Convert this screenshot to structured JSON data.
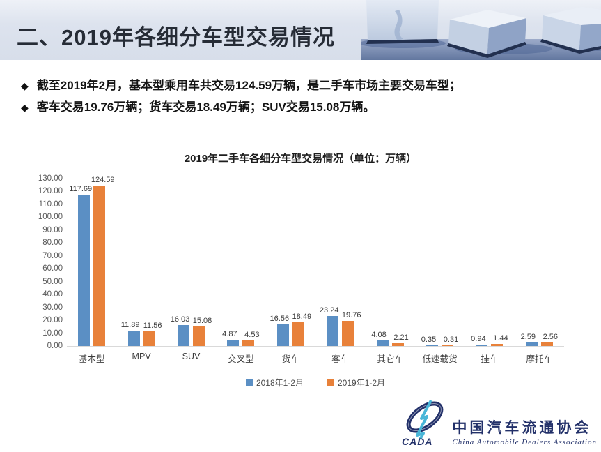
{
  "header": {
    "title": "二、2019年各细分车型交易情况"
  },
  "bullet_marker": "◆",
  "bullets": [
    "截至2019年2月，基本型乘用车共交易124.59万辆，是二手车市场主要交易车型；",
    "客车交易19.76万辆；货车交易18.49万辆；SUV交易15.08万辆。"
  ],
  "chart_data": {
    "type": "bar",
    "title": "2019年二手车各细分车型交易情况（单位：万辆）",
    "categories": [
      "基本型",
      "MPV",
      "SUV",
      "交叉型",
      "货车",
      "客车",
      "其它车",
      "低速载货",
      "挂车",
      "摩托车"
    ],
    "series": [
      {
        "name": "2018年1-2月",
        "color": "#5b8fc4",
        "values": [
          117.69,
          11.89,
          16.03,
          4.87,
          16.56,
          23.24,
          4.08,
          0.35,
          0.94,
          2.59
        ]
      },
      {
        "name": "2019年1-2月",
        "color": "#e8813a",
        "values": [
          124.59,
          11.56,
          15.08,
          4.53,
          18.49,
          19.76,
          2.21,
          0.31,
          1.44,
          2.56
        ]
      }
    ],
    "ylim": [
      0,
      130
    ],
    "ytick_step": 10,
    "ytick_format_decimals": 2,
    "grid": false,
    "legend_position": "bottom",
    "value_labels": true
  },
  "logo": {
    "acronym": "CADA",
    "name_cn": "中国汽车流通协会",
    "name_en": "China  Automobile  Dealers  Association",
    "navy": "#223069",
    "cyan": "#49b6d8"
  }
}
